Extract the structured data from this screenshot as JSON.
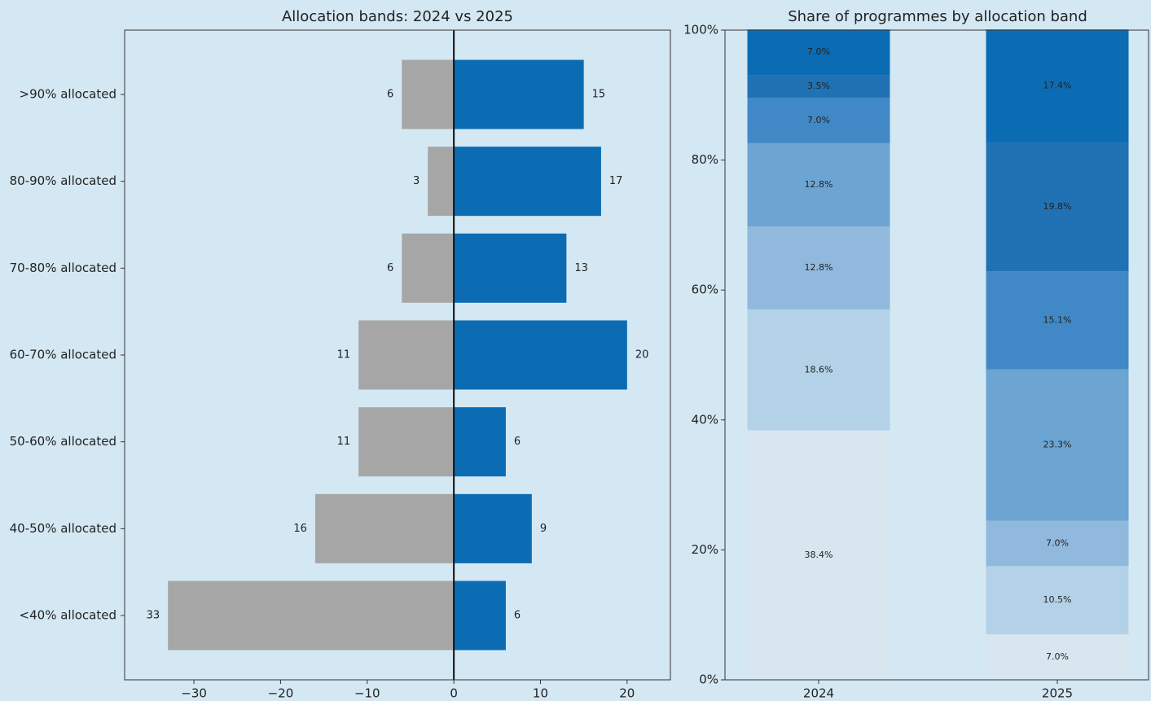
{
  "chart_data": [
    {
      "type": "diverging-bar",
      "title": "Allocation bands: 2024 vs 2025",
      "categories": [
        ">90% allocated",
        "80-90% allocated",
        "70-80% allocated",
        "60-70% allocated",
        "50-60% allocated",
        "40-50% allocated",
        "<40% allocated"
      ],
      "series": [
        {
          "color": "#a6a6a6",
          "values": [
            -6,
            -3,
            -6,
            -11,
            -11,
            -16,
            -33
          ],
          "value_labels": [
            "6",
            "3",
            "6",
            "11",
            "11",
            "16",
            "33"
          ]
        },
        {
          "color": "#0b6cb4",
          "values": [
            15,
            17,
            13,
            20,
            6,
            9,
            6
          ]
        }
      ],
      "xlim": [
        -38,
        25
      ],
      "xticks": [
        {
          "value": -30,
          "label": "−30"
        },
        {
          "value": -20,
          "label": "−20"
        },
        {
          "value": -10,
          "label": "−10"
        },
        0,
        10,
        20
      ]
    },
    {
      "type": "stacked-bar",
      "title": "Share of programmes by allocation band",
      "categories": [
        "2024",
        "2025"
      ],
      "series": [
        {
          "color": "#d8e6f0",
          "values": [
            38.4,
            7.0
          ],
          "value_labels": [
            "38.4%",
            "7.0%"
          ]
        },
        {
          "color": "#b3d2e7",
          "values": [
            18.6,
            10.5
          ],
          "value_labels": [
            "18.6%",
            "10.5%"
          ]
        },
        {
          "color": "#91b9dd",
          "values": [
            12.8,
            7.0
          ],
          "value_labels": [
            "12.8%",
            "7.0%"
          ]
        },
        {
          "color": "#6ca4d2",
          "values": [
            12.8,
            23.3
          ],
          "value_labels": [
            "12.8%",
            "23.3%"
          ]
        },
        {
          "color": "#4089c6",
          "values": [
            7.0,
            15.1
          ],
          "value_labels": [
            "7.0%",
            "15.1%"
          ]
        },
        {
          "color": "#2171b5",
          "values": [
            3.5,
            19.8
          ],
          "value_labels": [
            "3.5%",
            "19.8%"
          ]
        },
        {
          "color": "#0b6cb4",
          "values": [
            7.0,
            17.4
          ],
          "value_labels": [
            "7.0%",
            "17.4%"
          ]
        }
      ],
      "ylim": [
        0,
        100
      ],
      "yticks": [
        {
          "value": 0,
          "label": "0%"
        },
        {
          "value": 20,
          "label": "20%"
        },
        {
          "value": 40,
          "label": "40%"
        },
        {
          "value": 60,
          "label": "60%"
        },
        {
          "value": 80,
          "label": "80%"
        },
        {
          "value": 100,
          "label": "100%"
        }
      ]
    }
  ]
}
